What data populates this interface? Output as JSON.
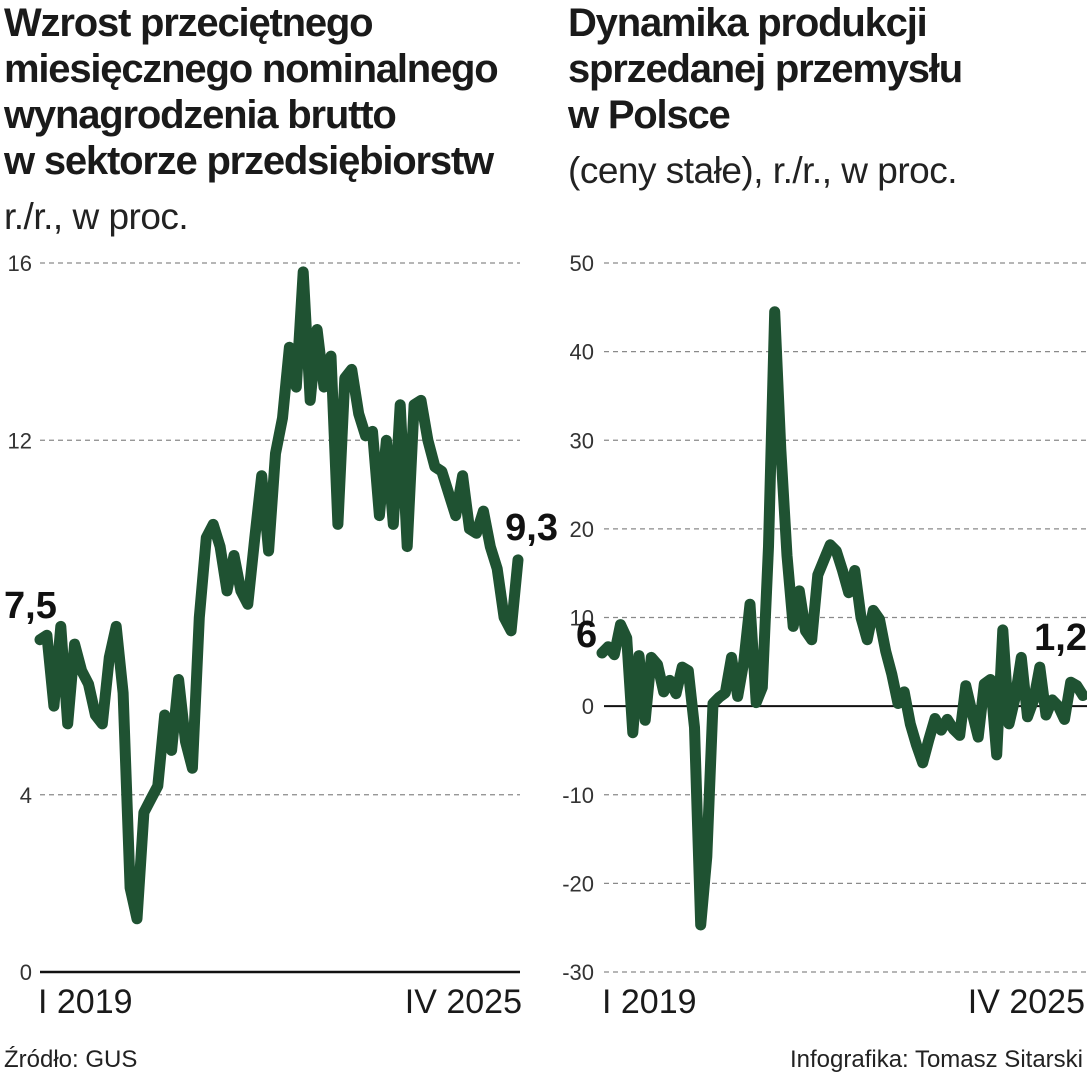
{
  "chart_data": [
    {
      "type": "line",
      "title_lines": [
        "Wzrost przeciętnego",
        "miesięcznego nominalnego",
        "wynagrodzenia brutto",
        "w sektorze przedsiębiorstw"
      ],
      "subtitle": "r./r., w proc.",
      "xlabel_start": "I 2019",
      "xlabel_end": "IV 2025",
      "ylim": [
        0,
        16
      ],
      "yticks": [
        0,
        4,
        12,
        16
      ],
      "ytick_labels": [
        "0",
        "4",
        "12",
        "16"
      ],
      "start_label": "7,5",
      "end_label": "9,3",
      "series": [
        {
          "name": "wynagrodzenie",
          "color": "#1f5232",
          "values": [
            7.5,
            7.6,
            6.0,
            7.8,
            5.6,
            7.4,
            6.8,
            6.5,
            5.8,
            5.6,
            7.1,
            7.8,
            6.3,
            1.9,
            1.2,
            3.6,
            3.9,
            4.2,
            5.8,
            5.0,
            6.6,
            5.2,
            4.6,
            8.0,
            9.8,
            10.1,
            9.6,
            8.6,
            9.4,
            8.6,
            8.3,
            9.8,
            11.2,
            9.5,
            11.7,
            12.5,
            14.1,
            13.2,
            15.8,
            12.9,
            14.5,
            13.2,
            13.9,
            10.1,
            13.4,
            13.6,
            12.6,
            12.1,
            12.2,
            10.3,
            12.0,
            10.1,
            12.8,
            9.6,
            12.8,
            12.9,
            12.0,
            11.4,
            11.3,
            10.8,
            10.3,
            11.2,
            10.0,
            9.9,
            10.4,
            9.6,
            9.1,
            8.0,
            7.7,
            9.3
          ]
        }
      ]
    },
    {
      "type": "line",
      "title_lines": [
        "Dynamika produkcji",
        "sprzedanej przemysłu",
        "w Polsce"
      ],
      "subtitle": "(ceny stałe), r./r., w proc.",
      "xlabel_start": "I 2019",
      "xlabel_end": "IV 2025",
      "ylim": [
        -30,
        50
      ],
      "yticks": [
        -30,
        -20,
        -10,
        0,
        10,
        20,
        30,
        40,
        50
      ],
      "ytick_labels": [
        "-30",
        "-20",
        "-10",
        "0",
        "10",
        "20",
        "30",
        "40",
        "50"
      ],
      "start_label": "6",
      "end_label": "1,2",
      "series": [
        {
          "name": "produkcja",
          "color": "#1f5232",
          "values": [
            6.0,
            6.7,
            5.8,
            9.2,
            7.7,
            -3.0,
            5.7,
            -1.6,
            5.5,
            4.7,
            1.6,
            2.9,
            1.4,
            4.4,
            4.0,
            -2.4,
            -24.7,
            -17.0,
            0.3,
            1.0,
            1.5,
            5.5,
            1.1,
            5.0,
            11.5,
            0.4,
            2.1,
            18.0,
            44.5,
            29.0,
            17.0,
            9.0,
            13.0,
            8.5,
            7.5,
            14.8,
            16.5,
            18.2,
            17.5,
            15.3,
            12.8,
            15.3,
            10.0,
            7.5,
            10.8,
            9.8,
            6.2,
            3.6,
            0.3,
            1.6,
            -2.0,
            -4.4,
            -6.4,
            -3.8,
            -1.4,
            -2.7,
            -1.5,
            -2.6,
            -3.3,
            2.3,
            -0.7,
            -3.5,
            2.5,
            3.0,
            -5.5,
            8.6,
            -2.0,
            1.0,
            5.5,
            -1.2,
            0.7,
            4.4,
            -1.0,
            0.7,
            0.0,
            -1.5,
            2.7,
            2.3,
            1.2
          ]
        }
      ]
    }
  ],
  "source": "Źródło: GUS",
  "credit": "Infografika: Tomasz Sitarski"
}
